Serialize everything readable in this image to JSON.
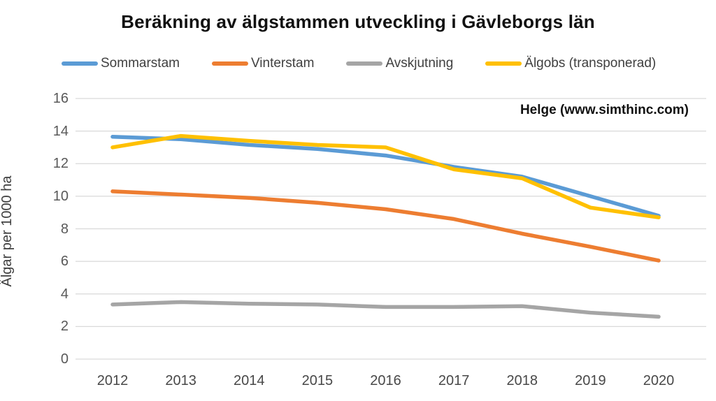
{
  "title": "Beräkning av älgstammen utveckling i Gävleborgs län",
  "annotation": "Helge (www.simthinc.com)",
  "colors": {
    "series_blue": "#5B9BD5",
    "series_orange": "#ED7D31",
    "series_gray": "#A5A5A5",
    "series_yellow": "#FFC000",
    "gridline": "#D9D9D9",
    "tick_text": "#595959",
    "title_text": "#111111"
  },
  "chart_data": {
    "type": "line",
    "title": "Beräkning av älgstammen utveckling i Gävleborgs län",
    "xlabel": "",
    "ylabel": "Älgar per 1000 ha",
    "categories": [
      "2012",
      "2013",
      "2014",
      "2015",
      "2016",
      "2017",
      "2018",
      "2019",
      "2020"
    ],
    "yticks": [
      0,
      2,
      4,
      6,
      8,
      10,
      12,
      14,
      16
    ],
    "ylim": [
      0,
      16
    ],
    "grid": true,
    "legend_position": "top",
    "annotation": "Helge (www.simthinc.com)",
    "series": [
      {
        "name": "Sommarstam",
        "color": "#5B9BD5",
        "values": [
          13.65,
          13.5,
          13.15,
          12.9,
          12.5,
          11.8,
          11.2,
          10.0,
          8.8
        ]
      },
      {
        "name": "Vinterstam",
        "color": "#ED7D31",
        "values": [
          10.3,
          10.1,
          9.9,
          9.6,
          9.2,
          8.6,
          7.7,
          6.9,
          6.05
        ]
      },
      {
        "name": "Avskjutning",
        "color": "#A5A5A5",
        "values": [
          3.35,
          3.5,
          3.4,
          3.35,
          3.2,
          3.2,
          3.25,
          2.85,
          2.6
        ]
      },
      {
        "name": "Älgobs (transponerad)",
        "color": "#FFC000",
        "values": [
          13.0,
          13.7,
          13.4,
          13.15,
          13.0,
          11.65,
          11.1,
          9.3,
          8.7
        ]
      }
    ]
  }
}
